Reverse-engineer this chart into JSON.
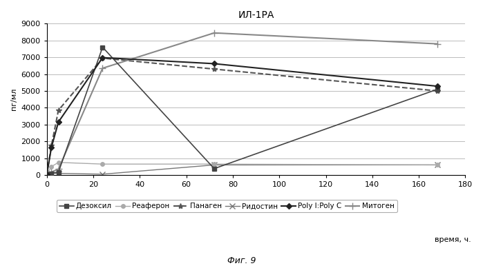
{
  "title": "ИЛ-1РА",
  "ylabel": "пг/мл",
  "xlabel_right": "время, ч.",
  "figcaption": "Фиг. 9",
  "xlim": [
    0,
    180
  ],
  "ylim": [
    0,
    9000
  ],
  "yticks": [
    0,
    1000,
    2000,
    3000,
    4000,
    5000,
    6000,
    7000,
    8000,
    9000
  ],
  "xticks": [
    0,
    20,
    40,
    60,
    80,
    100,
    120,
    140,
    160,
    180
  ],
  "series": [
    {
      "label": "Дезоксил",
      "x": [
        0,
        2,
        5,
        24,
        72,
        168
      ],
      "y": [
        50,
        100,
        170,
        7600,
        380,
        5100
      ],
      "color": "#444444",
      "linestyle": "-",
      "marker": "s",
      "markersize": 4,
      "linewidth": 1.2,
      "zorder": 5
    },
    {
      "label": "Реаферон",
      "x": [
        0,
        2,
        5,
        24,
        72,
        168
      ],
      "y": [
        30,
        500,
        750,
        650,
        650,
        600
      ],
      "color": "#aaaaaa",
      "linestyle": "-",
      "marker": "o",
      "markersize": 4,
      "linewidth": 1.0,
      "zorder": 4
    },
    {
      "label": "Панаген",
      "x": [
        0,
        2,
        5,
        24,
        72,
        168
      ],
      "y": [
        30,
        1750,
        3850,
        6950,
        6300,
        5000
      ],
      "color": "#555555",
      "linestyle": "--",
      "marker": "*",
      "markersize": 6,
      "linewidth": 1.5,
      "zorder": 3
    },
    {
      "label": "Ридостин",
      "x": [
        0,
        2,
        5,
        24,
        72,
        168
      ],
      "y": [
        30,
        100,
        100,
        50,
        600,
        600
      ],
      "color": "#777777",
      "linestyle": "-",
      "marker": "x",
      "markersize": 6,
      "linewidth": 1.0,
      "zorder": 2
    },
    {
      "label": "Poly I:Poly C",
      "x": [
        0,
        2,
        5,
        24,
        72,
        168
      ],
      "y": [
        30,
        1650,
        3150,
        6980,
        6620,
        5280
      ],
      "color": "#222222",
      "linestyle": "-",
      "marker": "D",
      "markersize": 4,
      "linewidth": 1.5,
      "zorder": 6
    },
    {
      "label": "Митоген",
      "x": [
        0,
        2,
        5,
        24,
        72,
        168
      ],
      "y": [
        30,
        180,
        350,
        6350,
        8450,
        7800
      ],
      "color": "#888888",
      "linestyle": "-",
      "marker": "+",
      "markersize": 7,
      "linewidth": 1.5,
      "zorder": 4
    }
  ],
  "bg_color": "#ffffff",
  "grid_color": "#bbbbbb",
  "title_fontsize": 10,
  "label_fontsize": 8,
  "tick_fontsize": 8,
  "legend_fontsize": 7.5
}
